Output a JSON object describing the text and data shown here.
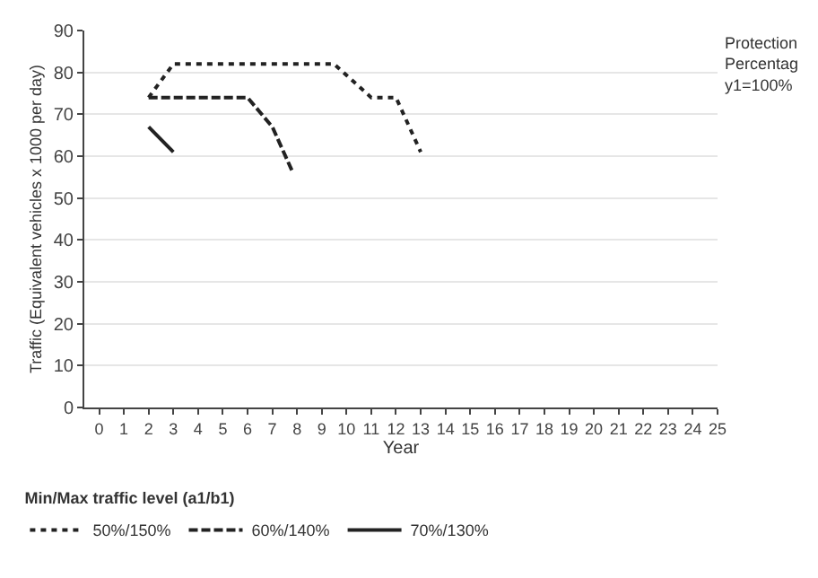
{
  "chart_data": {
    "type": "line",
    "xlabel": "Year",
    "ylabel": "Traffic (Equivalent vehicles x 1000 per day)",
    "legend_title": "Min/Max traffic level (a1/b1)",
    "xlim": [
      -0.6,
      25
    ],
    "xticks": [
      0,
      1,
      2,
      3,
      4,
      5,
      6,
      7,
      8,
      9,
      10,
      11,
      12,
      13,
      14,
      15,
      16,
      17,
      18,
      19,
      20,
      21,
      22,
      23,
      24,
      25
    ],
    "ylim": [
      0,
      90
    ],
    "yticks": [
      0,
      10,
      20,
      30,
      40,
      50,
      60,
      70,
      80,
      90
    ],
    "grid": "y",
    "legend": "bottom",
    "marker": "none",
    "annotations": [
      "Protection\nPercentag\ny1=100%"
    ],
    "series": [
      {
        "name": "50%/150%",
        "color": "#222222",
        "line_style": "dotted",
        "x": [
          2,
          3,
          9.5,
          11,
          12,
          13
        ],
        "values": [
          74,
          82,
          82,
          74,
          74,
          61
        ]
      },
      {
        "name": "60%/140%",
        "color": "#222222",
        "line_style": "dashed",
        "x": [
          2,
          6,
          7,
          7.8
        ],
        "values": [
          74,
          74,
          67,
          56.5
        ]
      },
      {
        "name": "70%/130%",
        "color": "#222222",
        "line_style": "solid",
        "x": [
          2,
          3
        ],
        "values": [
          67,
          61
        ]
      }
    ]
  }
}
